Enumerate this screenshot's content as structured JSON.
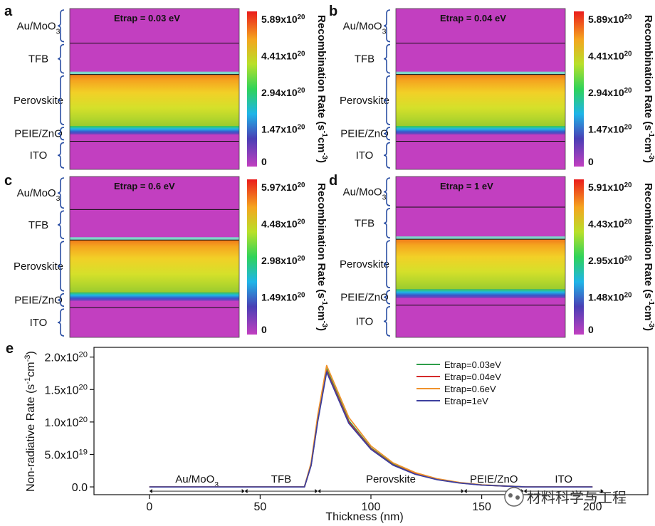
{
  "panels": [
    {
      "letter": "a",
      "etrap_label": "Etrap = 0.03 eV",
      "layers": [
        "Au/MoO3",
        "TFB",
        "Perovskite",
        "PEIE/ZnO",
        "ITO"
      ],
      "colorbar_ticks": [
        "5.89x10^20",
        "4.41x10^20",
        "2.94x10^20",
        "1.47x10^20",
        "0"
      ],
      "colorbar_title": "Recombination Rate (s^-1cm^-3)"
    },
    {
      "letter": "b",
      "etrap_label": "Etrap = 0.04 eV",
      "layers": [
        "Au/MoO3",
        "TFB",
        "Perovskite",
        "PEIE/ZnO",
        "ITO"
      ],
      "colorbar_ticks": [
        "5.89x10^20",
        "4.41x10^20",
        "2.94x10^20",
        "1.47x10^20",
        "0"
      ],
      "colorbar_title": "Recombination Rate (s^-1cm^-3)"
    },
    {
      "letter": "c",
      "etrap_label": "Etrap = 0.6 eV",
      "layers": [
        "Au/MoO3",
        "TFB",
        "Perovskite",
        "PEIE/ZnO",
        "ITO"
      ],
      "colorbar_ticks": [
        "5.97x10^20",
        "4.48x10^20",
        "2.98x10^20",
        "1.49x10^20",
        "0"
      ],
      "colorbar_title": "Recombination Rate (s^-1cm^-3)"
    },
    {
      "letter": "d",
      "etrap_label": "Etrap = 1 eV",
      "layers": [
        "Au/MoO3",
        "TFB",
        "Perovskite",
        "PEIE/ZnO",
        "ITO"
      ],
      "colorbar_ticks": [
        "5.91x10^20",
        "4.43x10^20",
        "2.95x10^20",
        "1.48x10^20",
        "0"
      ],
      "colorbar_title": "Recombination Rate (s^-1cm^-3)"
    }
  ],
  "line_panel_letter": "e",
  "watermark": "材料科学与工程",
  "colors": {
    "magenta": "#c23fc0",
    "s1": "#2e9e4a",
    "s2": "#d42a2a",
    "s3": "#f0922b",
    "s4": "#3c3f9e"
  },
  "chart_data": {
    "type": "line",
    "title": "",
    "xlabel": "Thickness (nm)",
    "ylabel": "Non-radiative Rate (s^-1cm^-3)",
    "xlim": [
      -25,
      225
    ],
    "ylim": [
      -1.2e+19,
      2.15e+20
    ],
    "xticks": [
      0,
      50,
      100,
      150,
      200
    ],
    "xtick_labels": [
      "0",
      "50",
      "100",
      "150",
      "200"
    ],
    "yticks": [
      0,
      5e+19,
      1e+20,
      1.5e+20,
      2e+20
    ],
    "ytick_labels": [
      "0.0",
      "5.0x10^19",
      "1.0x10^20",
      "1.5x10^20",
      "2.0x10^20"
    ],
    "legend_position": "top-right",
    "series": [
      {
        "name": "Etrap=0.03eV",
        "x": [
          0,
          40,
          70,
          73,
          76,
          80,
          90,
          100,
          110,
          120,
          130,
          140,
          150,
          160,
          170,
          200
        ],
        "y": [
          0,
          0,
          0,
          3.5e+19,
          1.05e+20,
          1.82e+20,
          1.02e+20,
          6e+19,
          3.5e+19,
          2.1e+19,
          1.2e+19,
          6.5e+18,
          3e+18,
          1.5e+18,
          0,
          0
        ]
      },
      {
        "name": "Etrap=0.04eV",
        "x": [
          0,
          40,
          70,
          73,
          76,
          80,
          90,
          100,
          110,
          120,
          130,
          140,
          150,
          160,
          170,
          200
        ],
        "y": [
          0,
          0,
          0,
          3.4e+19,
          1.03e+20,
          1.79e+20,
          1e+20,
          5.9e+19,
          3.4e+19,
          2e+19,
          1.15e+19,
          6.2e+18,
          2.9e+18,
          1.4e+18,
          0,
          0
        ]
      },
      {
        "name": "Etrap=0.6eV",
        "x": [
          0,
          40,
          70,
          73,
          76,
          80,
          90,
          100,
          110,
          120,
          130,
          140,
          150,
          160,
          170,
          200
        ],
        "y": [
          0,
          0,
          0,
          3.7e+19,
          1.1e+20,
          1.87e+20,
          1.07e+20,
          6.3e+19,
          3.7e+19,
          2.2e+19,
          1.25e+19,
          6.8e+18,
          3.1e+18,
          1.6e+18,
          0,
          0
        ]
      },
      {
        "name": "Etrap=1eV",
        "x": [
          0,
          40,
          70,
          73,
          76,
          80,
          90,
          100,
          110,
          120,
          130,
          140,
          150,
          160,
          170,
          200
        ],
        "y": [
          0,
          0,
          0,
          3.3e+19,
          1.01e+20,
          1.77e+20,
          9.8e+19,
          5.8e+19,
          3.35e+19,
          1.95e+19,
          1.1e+19,
          6e+18,
          2.8e+18,
          1.3e+18,
          0,
          0
        ]
      }
    ],
    "region_labels": [
      {
        "label": "Au/MoO3",
        "x_start": 0,
        "x_end": 43
      },
      {
        "label": "TFB",
        "x_start": 43,
        "x_end": 76
      },
      {
        "label": "Perovskite",
        "x_start": 76,
        "x_end": 142
      },
      {
        "label": "PEIE/ZnO",
        "x_start": 142,
        "x_end": 169
      },
      {
        "label": "ITO",
        "x_start": 169,
        "x_end": 205
      }
    ]
  }
}
